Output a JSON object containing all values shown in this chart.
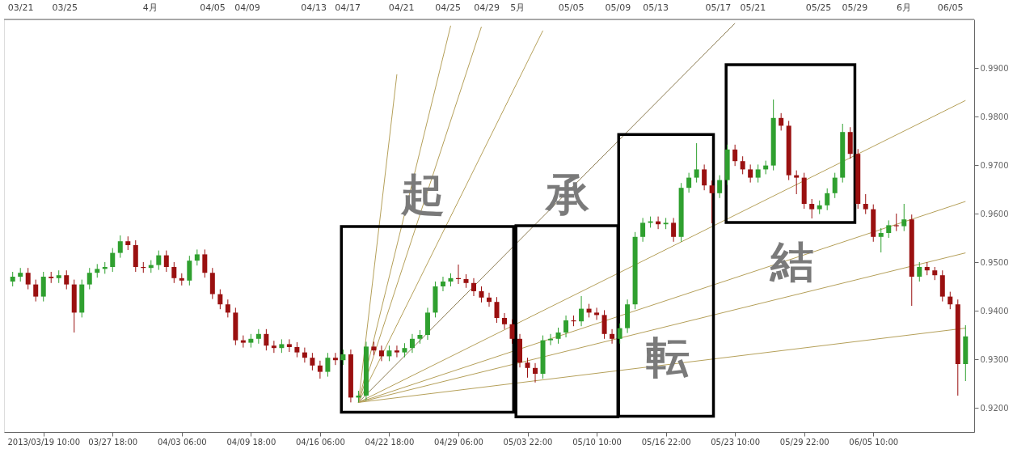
{
  "chart_data": {
    "type": "candlestick",
    "categories": [
      null,
      null,
      null,
      null,
      "2013/03/19 10:00",
      null,
      null,
      null,
      null,
      null,
      null,
      null,
      null,
      "03/27 18:00",
      null,
      null,
      null,
      null,
      null,
      null,
      null,
      null,
      "04/03 06:00",
      null,
      null,
      null,
      null,
      null,
      null,
      null,
      null,
      "04/09 18:00",
      null,
      null,
      null,
      null,
      null,
      null,
      null,
      null,
      "04/16 06:00",
      null,
      null,
      null,
      null,
      null,
      null,
      null,
      null,
      "04/22 18:00",
      null,
      null,
      null,
      null,
      null,
      null,
      null,
      null,
      "04/29 06:00",
      null,
      null,
      null,
      null,
      null,
      null,
      null,
      null,
      "05/03 22:00",
      null,
      null,
      null,
      null,
      null,
      null,
      null,
      null,
      "05/10 10:00",
      null,
      null,
      null,
      null,
      null,
      null,
      null,
      null,
      "05/16 22:00",
      null,
      null,
      null,
      null,
      null,
      null,
      null,
      null,
      "05/23 10:00",
      null,
      null,
      null,
      null,
      null,
      null,
      null,
      null,
      "05/29 22:00",
      null,
      null,
      null,
      null,
      null,
      null,
      null,
      null,
      "06/05 10:00",
      null,
      null,
      null,
      null,
      null,
      null,
      null,
      null,
      null,
      null,
      null,
      null
    ],
    "ohlc": [
      [
        0.946,
        0.948,
        0.945,
        0.947
      ],
      [
        0.947,
        0.9488,
        0.946,
        0.9478
      ],
      [
        0.9478,
        0.9488,
        0.9444,
        0.9454
      ],
      [
        0.9454,
        0.9464,
        0.9419,
        0.9429
      ],
      [
        0.9429,
        0.948,
        0.9419,
        0.947
      ],
      [
        0.947,
        0.948,
        0.9457,
        0.9467
      ],
      [
        0.9467,
        0.9483,
        0.9457,
        0.9473
      ],
      [
        0.9473,
        0.9483,
        0.9444,
        0.9454
      ],
      [
        0.9454,
        0.9464,
        0.9355,
        0.9396
      ],
      [
        0.9396,
        0.9464,
        0.9386,
        0.9454
      ],
      [
        0.9454,
        0.9488,
        0.9444,
        0.9478
      ],
      [
        0.9478,
        0.9496,
        0.9468,
        0.9486
      ],
      [
        0.9486,
        0.95,
        0.9476,
        0.949
      ],
      [
        0.949,
        0.9529,
        0.948,
        0.9519
      ],
      [
        0.9519,
        0.9555,
        0.9509,
        0.9543
      ],
      [
        0.9543,
        0.9553,
        0.9525,
        0.9535
      ],
      [
        0.9535,
        0.9545,
        0.948,
        0.949
      ],
      [
        0.949,
        0.95,
        0.9478,
        0.9488
      ],
      [
        0.9488,
        0.9504,
        0.9478,
        0.9494
      ],
      [
        0.9494,
        0.9524,
        0.9484,
        0.9514
      ],
      [
        0.9514,
        0.9524,
        0.948,
        0.949
      ],
      [
        0.949,
        0.95,
        0.9457,
        0.9467
      ],
      [
        0.9467,
        0.9477,
        0.9452,
        0.9462
      ],
      [
        0.9462,
        0.9513,
        0.9452,
        0.9503
      ],
      [
        0.9503,
        0.9526,
        0.9493,
        0.9516
      ],
      [
        0.9516,
        0.9526,
        0.9468,
        0.9478
      ],
      [
        0.9478,
        0.9488,
        0.9424,
        0.9434
      ],
      [
        0.9434,
        0.9444,
        0.9403,
        0.9413
      ],
      [
        0.9413,
        0.9423,
        0.9386,
        0.9396
      ],
      [
        0.9396,
        0.9406,
        0.9329,
        0.9339
      ],
      [
        0.9339,
        0.9349,
        0.9324,
        0.9334
      ],
      [
        0.9334,
        0.9352,
        0.9324,
        0.9342
      ],
      [
        0.9342,
        0.9362,
        0.9332,
        0.9352
      ],
      [
        0.9352,
        0.9362,
        0.9318,
        0.9328
      ],
      [
        0.9328,
        0.9338,
        0.9313,
        0.9323
      ],
      [
        0.9323,
        0.9341,
        0.9313,
        0.9331
      ],
      [
        0.9331,
        0.9341,
        0.9315,
        0.9325
      ],
      [
        0.9325,
        0.9335,
        0.9304,
        0.9314
      ],
      [
        0.9314,
        0.9324,
        0.9293,
        0.9303
      ],
      [
        0.9303,
        0.9313,
        0.9277,
        0.9287
      ],
      [
        0.9287,
        0.9297,
        0.926,
        0.9274
      ],
      [
        0.9274,
        0.9313,
        0.9264,
        0.9303
      ],
      [
        0.9303,
        0.9313,
        0.9288,
        0.9298
      ],
      [
        0.9298,
        0.932,
        0.9288,
        0.931
      ],
      [
        0.931,
        0.932,
        0.9211,
        0.9221
      ],
      [
        0.9221,
        0.9235,
        0.9211,
        0.9225
      ],
      [
        0.9225,
        0.9336,
        0.9215,
        0.9326
      ],
      [
        0.9326,
        0.9336,
        0.9308,
        0.9318
      ],
      [
        0.9318,
        0.9328,
        0.9296,
        0.9306
      ],
      [
        0.9306,
        0.9328,
        0.9296,
        0.9318
      ],
      [
        0.9318,
        0.9328,
        0.9304,
        0.9314
      ],
      [
        0.9314,
        0.9333,
        0.9304,
        0.9323
      ],
      [
        0.9323,
        0.9352,
        0.9313,
        0.9342
      ],
      [
        0.9342,
        0.936,
        0.9332,
        0.935
      ],
      [
        0.935,
        0.9406,
        0.934,
        0.9396
      ],
      [
        0.9396,
        0.946,
        0.9386,
        0.945
      ],
      [
        0.945,
        0.947,
        0.944,
        0.946
      ],
      [
        0.946,
        0.9477,
        0.945,
        0.9467
      ],
      [
        0.9467,
        0.9495,
        0.9455,
        0.9465
      ],
      [
        0.9465,
        0.9475,
        0.9447,
        0.9457
      ],
      [
        0.9457,
        0.9467,
        0.943,
        0.944
      ],
      [
        0.944,
        0.945,
        0.9417,
        0.9427
      ],
      [
        0.9427,
        0.9437,
        0.9408,
        0.9418
      ],
      [
        0.9418,
        0.9428,
        0.9375,
        0.9385
      ],
      [
        0.9385,
        0.9395,
        0.9362,
        0.9372
      ],
      [
        0.9372,
        0.9382,
        0.9332,
        0.9342
      ],
      [
        0.9342,
        0.9352,
        0.9283,
        0.9293
      ],
      [
        0.9293,
        0.9303,
        0.9262,
        0.9282
      ],
      [
        0.9282,
        0.9292,
        0.9252,
        0.927
      ],
      [
        0.927,
        0.9349,
        0.926,
        0.9339
      ],
      [
        0.9339,
        0.9352,
        0.9329,
        0.9342
      ],
      [
        0.9342,
        0.9365,
        0.9332,
        0.9355
      ],
      [
        0.9355,
        0.939,
        0.9345,
        0.938
      ],
      [
        0.938,
        0.939,
        0.9368,
        0.9378
      ],
      [
        0.9378,
        0.943,
        0.9368,
        0.9404
      ],
      [
        0.9404,
        0.9414,
        0.9386,
        0.9396
      ],
      [
        0.9396,
        0.9406,
        0.9381,
        0.9391
      ],
      [
        0.9391,
        0.9401,
        0.9342,
        0.9352
      ],
      [
        0.9352,
        0.9362,
        0.9332,
        0.9342
      ],
      [
        0.9342,
        0.9374,
        0.9332,
        0.9364
      ],
      [
        0.9364,
        0.9423,
        0.9354,
        0.9413
      ],
      [
        0.9413,
        0.9562,
        0.9403,
        0.9552
      ],
      [
        0.9552,
        0.9591,
        0.9542,
        0.9581
      ],
      [
        0.9581,
        0.9594,
        0.9571,
        0.9584
      ],
      [
        0.9584,
        0.9594,
        0.9568,
        0.9578
      ],
      [
        0.9578,
        0.9591,
        0.9568,
        0.9581
      ],
      [
        0.9581,
        0.9591,
        0.9542,
        0.9552
      ],
      [
        0.9552,
        0.9663,
        0.9542,
        0.9653
      ],
      [
        0.9653,
        0.9684,
        0.9643,
        0.9674
      ],
      [
        0.9674,
        0.9745,
        0.9664,
        0.9691
      ],
      [
        0.9691,
        0.9701,
        0.9648,
        0.9658
      ],
      [
        0.9658,
        0.9668,
        0.958,
        0.9642
      ],
      [
        0.9642,
        0.9679,
        0.9632,
        0.9669
      ],
      [
        0.9669,
        0.9742,
        0.9659,
        0.9732
      ],
      [
        0.9732,
        0.9742,
        0.9698,
        0.9708
      ],
      [
        0.9708,
        0.9718,
        0.9681,
        0.9691
      ],
      [
        0.9691,
        0.9701,
        0.9664,
        0.9674
      ],
      [
        0.9674,
        0.9701,
        0.9664,
        0.9691
      ],
      [
        0.9691,
        0.9709,
        0.9681,
        0.9699
      ],
      [
        0.9699,
        0.9835,
        0.9689,
        0.9797
      ],
      [
        0.9797,
        0.9807,
        0.9771,
        0.9781
      ],
      [
        0.9781,
        0.9791,
        0.9669,
        0.9679
      ],
      [
        0.9679,
        0.9689,
        0.964,
        0.9674
      ],
      [
        0.9674,
        0.9684,
        0.961,
        0.962
      ],
      [
        0.962,
        0.963,
        0.959,
        0.9609
      ],
      [
        0.9609,
        0.9627,
        0.9599,
        0.9617
      ],
      [
        0.9617,
        0.9652,
        0.9607,
        0.9642
      ],
      [
        0.9642,
        0.9684,
        0.9632,
        0.9674
      ],
      [
        0.9674,
        0.9785,
        0.9664,
        0.9768
      ],
      [
        0.9768,
        0.9778,
        0.9713,
        0.9723
      ],
      [
        0.9723,
        0.9733,
        0.961,
        0.962
      ],
      [
        0.962,
        0.964,
        0.9599,
        0.9609
      ],
      [
        0.9609,
        0.9619,
        0.9542,
        0.9552
      ],
      [
        0.9552,
        0.957,
        0.952,
        0.956
      ],
      [
        0.956,
        0.9586,
        0.955,
        0.9576
      ],
      [
        0.9576,
        0.96,
        0.9564,
        0.9574
      ],
      [
        0.9574,
        0.962,
        0.9564,
        0.9588
      ],
      [
        0.9588,
        0.9598,
        0.941,
        0.947
      ],
      [
        0.947,
        0.95,
        0.946,
        0.949
      ],
      [
        0.949,
        0.95,
        0.9473,
        0.9483
      ],
      [
        0.9483,
        0.949,
        0.9463,
        0.9473
      ],
      [
        0.9473,
        0.9483,
        0.9419,
        0.9429
      ],
      [
        0.9429,
        0.9439,
        0.9403,
        0.9413
      ],
      [
        0.9413,
        0.9423,
        0.9225,
        0.929
      ],
      [
        0.929,
        0.937,
        0.9255,
        0.9347
      ]
    ],
    "series": [
      {
        "type": "line",
        "color": "#b5a05a",
        "values": [
          null,
          null,
          null,
          null,
          null,
          null,
          null,
          null,
          null,
          null,
          null,
          null,
          null,
          null,
          null,
          null,
          null,
          null,
          null,
          null,
          null,
          null,
          null,
          null,
          null,
          null,
          null,
          null,
          null,
          null,
          null,
          null,
          null,
          null,
          null,
          null,
          null,
          null,
          null,
          null,
          null,
          null,
          null,
          null,
          null,
          0.9211,
          null,
          null,
          null,
          null,
          0.9887,
          null,
          null,
          null,
          null,
          null,
          null,
          null,
          null,
          null,
          null,
          null,
          null,
          null,
          null,
          null,
          null,
          null,
          null,
          null,
          null,
          null,
          null,
          null,
          null,
          null,
          null,
          null,
          null,
          null,
          null,
          null,
          null,
          null,
          null,
          null,
          null,
          null,
          null,
          null,
          null,
          null,
          null,
          null,
          null,
          null,
          null,
          null,
          null,
          null,
          null,
          null,
          null,
          null,
          null,
          null,
          null,
          null,
          null,
          null,
          null,
          null,
          null,
          null,
          null,
          null,
          null,
          null,
          null,
          null,
          null,
          null,
          null,
          null,
          null
        ]
      },
      {
        "type": "line",
        "color": "#b5a05a",
        "values": [
          null,
          null,
          null,
          null,
          null,
          null,
          null,
          null,
          null,
          null,
          null,
          null,
          null,
          null,
          null,
          null,
          null,
          null,
          null,
          null,
          null,
          null,
          null,
          null,
          null,
          null,
          null,
          null,
          null,
          null,
          null,
          null,
          null,
          null,
          null,
          null,
          null,
          null,
          null,
          null,
          null,
          null,
          null,
          null,
          null,
          0.9211,
          null,
          null,
          null,
          null,
          null,
          null,
          null,
          null,
          null,
          null,
          null,
          0.9987,
          null,
          null,
          null,
          null,
          null,
          null,
          null,
          null,
          null,
          null,
          null,
          null,
          null,
          null,
          null,
          null,
          null,
          null,
          null,
          null,
          null,
          null,
          null,
          null,
          null,
          null,
          null,
          null,
          null,
          null,
          null,
          null,
          null,
          null,
          null,
          null,
          null,
          null,
          null,
          null,
          null,
          null,
          null,
          null,
          null,
          null,
          null,
          null,
          null,
          null,
          null,
          null,
          null,
          null,
          null,
          null,
          null,
          null,
          null,
          null,
          null,
          null,
          null,
          null,
          null,
          null,
          null
        ]
      },
      {
        "type": "line",
        "color": "#b5a05a",
        "values": [
          null,
          null,
          null,
          null,
          null,
          null,
          null,
          null,
          null,
          null,
          null,
          null,
          null,
          null,
          null,
          null,
          null,
          null,
          null,
          null,
          null,
          null,
          null,
          null,
          null,
          null,
          null,
          null,
          null,
          null,
          null,
          null,
          null,
          null,
          null,
          null,
          null,
          null,
          null,
          null,
          null,
          null,
          null,
          null,
          null,
          0.9211,
          null,
          null,
          null,
          null,
          null,
          null,
          null,
          null,
          null,
          null,
          null,
          null,
          null,
          null,
          null,
          0.9985,
          null,
          null,
          null,
          null,
          null,
          null,
          null,
          null,
          null,
          null,
          null,
          null,
          null,
          null,
          null,
          null,
          null,
          null,
          null,
          null,
          null,
          null,
          null,
          null,
          null,
          null,
          null,
          null,
          null,
          null,
          null,
          null,
          null,
          null,
          null,
          null,
          null,
          null,
          null,
          null,
          null,
          null,
          null,
          null,
          null,
          null,
          null,
          null,
          null,
          null,
          null,
          null,
          null,
          null,
          null,
          null,
          null,
          null,
          null,
          null,
          null,
          null,
          null
        ]
      },
      {
        "type": "line",
        "color": "#b5a05a",
        "values": [
          null,
          null,
          null,
          null,
          null,
          null,
          null,
          null,
          null,
          null,
          null,
          null,
          null,
          null,
          null,
          null,
          null,
          null,
          null,
          null,
          null,
          null,
          null,
          null,
          null,
          null,
          null,
          null,
          null,
          null,
          null,
          null,
          null,
          null,
          null,
          null,
          null,
          null,
          null,
          null,
          null,
          null,
          null,
          null,
          null,
          0.9211,
          null,
          null,
          null,
          null,
          null,
          null,
          null,
          null,
          null,
          null,
          null,
          null,
          null,
          null,
          null,
          null,
          null,
          null,
          null,
          null,
          null,
          null,
          null,
          0.9977,
          null,
          null,
          null,
          null,
          null,
          null,
          null,
          null,
          null,
          null,
          null,
          null,
          null,
          null,
          null,
          null,
          null,
          null,
          null,
          null,
          null,
          null,
          null,
          null,
          null,
          null,
          null,
          null,
          null,
          null,
          null,
          null,
          null,
          null,
          null,
          null,
          null,
          null,
          null,
          null,
          null,
          null,
          null,
          null,
          null,
          null,
          null,
          null,
          null,
          null,
          null,
          null,
          null,
          null,
          null
        ]
      },
      {
        "type": "line",
        "color": "#8a7a50",
        "values": [
          null,
          null,
          null,
          null,
          null,
          null,
          null,
          null,
          null,
          null,
          null,
          null,
          null,
          null,
          null,
          null,
          null,
          null,
          null,
          null,
          null,
          null,
          null,
          null,
          null,
          null,
          null,
          null,
          null,
          null,
          null,
          null,
          null,
          null,
          null,
          null,
          null,
          null,
          null,
          null,
          null,
          null,
          null,
          null,
          null,
          0.9211,
          null,
          null,
          null,
          null,
          null,
          null,
          null,
          null,
          null,
          null,
          null,
          null,
          null,
          null,
          null,
          null,
          null,
          null,
          null,
          null,
          null,
          null,
          null,
          null,
          null,
          null,
          null,
          null,
          null,
          null,
          null,
          null,
          null,
          null,
          null,
          null,
          null,
          null,
          null,
          null,
          null,
          null,
          null,
          null,
          null,
          null,
          null,
          null,
          0.9992,
          null,
          null,
          null,
          null,
          null,
          null,
          null,
          null,
          null,
          null,
          null,
          null,
          null,
          null,
          null,
          null,
          null,
          null,
          null,
          null,
          null,
          null,
          null,
          null,
          null,
          null,
          null,
          null,
          null,
          null
        ]
      },
      {
        "type": "line",
        "color": "#b5a05a",
        "values": [
          null,
          null,
          null,
          null,
          null,
          null,
          null,
          null,
          null,
          null,
          null,
          null,
          null,
          null,
          null,
          null,
          null,
          null,
          null,
          null,
          null,
          null,
          null,
          null,
          null,
          null,
          null,
          null,
          null,
          null,
          null,
          null,
          null,
          null,
          null,
          null,
          null,
          null,
          null,
          null,
          null,
          null,
          null,
          null,
          null,
          0.9211,
          null,
          null,
          null,
          null,
          null,
          null,
          null,
          null,
          null,
          null,
          null,
          null,
          null,
          null,
          null,
          null,
          null,
          null,
          null,
          null,
          null,
          null,
          null,
          null,
          null,
          null,
          null,
          null,
          null,
          null,
          null,
          null,
          null,
          null,
          null,
          null,
          null,
          null,
          null,
          null,
          null,
          null,
          null,
          null,
          null,
          null,
          null,
          null,
          null,
          null,
          null,
          null,
          null,
          null,
          null,
          null,
          null,
          null,
          null,
          null,
          null,
          null,
          null,
          null,
          null,
          null,
          null,
          null,
          null,
          null,
          null,
          null,
          null,
          null,
          null,
          null,
          null,
          null,
          0.9833
        ]
      },
      {
        "type": "line",
        "color": "#b5a05a",
        "values": [
          null,
          null,
          null,
          null,
          null,
          null,
          null,
          null,
          null,
          null,
          null,
          null,
          null,
          null,
          null,
          null,
          null,
          null,
          null,
          null,
          null,
          null,
          null,
          null,
          null,
          null,
          null,
          null,
          null,
          null,
          null,
          null,
          null,
          null,
          null,
          null,
          null,
          null,
          null,
          null,
          null,
          null,
          null,
          null,
          null,
          0.9211,
          null,
          null,
          null,
          null,
          null,
          null,
          null,
          null,
          null,
          null,
          null,
          null,
          null,
          null,
          null,
          null,
          null,
          null,
          null,
          null,
          null,
          null,
          null,
          null,
          null,
          null,
          null,
          null,
          null,
          null,
          null,
          null,
          null,
          null,
          null,
          null,
          null,
          null,
          null,
          null,
          null,
          null,
          null,
          null,
          null,
          null,
          null,
          null,
          null,
          null,
          null,
          null,
          null,
          null,
          null,
          null,
          null,
          null,
          null,
          null,
          null,
          null,
          null,
          null,
          null,
          null,
          null,
          null,
          null,
          null,
          null,
          null,
          null,
          null,
          null,
          null,
          null,
          null,
          0.9625
        ]
      },
      {
        "type": "line",
        "color": "#b5a05a",
        "values": [
          null,
          null,
          null,
          null,
          null,
          null,
          null,
          null,
          null,
          null,
          null,
          null,
          null,
          null,
          null,
          null,
          null,
          null,
          null,
          null,
          null,
          null,
          null,
          null,
          null,
          null,
          null,
          null,
          null,
          null,
          null,
          null,
          null,
          null,
          null,
          null,
          null,
          null,
          null,
          null,
          null,
          null,
          null,
          null,
          null,
          0.9211,
          null,
          null,
          null,
          null,
          null,
          null,
          null,
          null,
          null,
          null,
          null,
          null,
          null,
          null,
          null,
          null,
          null,
          null,
          null,
          null,
          null,
          null,
          null,
          null,
          null,
          null,
          null,
          null,
          null,
          null,
          null,
          null,
          null,
          null,
          null,
          null,
          null,
          null,
          null,
          null,
          null,
          null,
          null,
          null,
          null,
          null,
          null,
          null,
          null,
          null,
          null,
          null,
          null,
          null,
          null,
          null,
          null,
          null,
          null,
          null,
          null,
          null,
          null,
          null,
          null,
          null,
          null,
          null,
          null,
          null,
          null,
          null,
          null,
          null,
          null,
          null,
          null,
          null,
          0.9519
        ]
      },
      {
        "type": "line",
        "color": "#b5a05a",
        "values": [
          null,
          null,
          null,
          null,
          null,
          null,
          null,
          null,
          null,
          null,
          null,
          null,
          null,
          null,
          null,
          null,
          null,
          null,
          null,
          null,
          null,
          null,
          null,
          null,
          null,
          null,
          null,
          null,
          null,
          null,
          null,
          null,
          null,
          null,
          null,
          null,
          null,
          null,
          null,
          null,
          null,
          null,
          null,
          null,
          null,
          0.9211,
          null,
          null,
          null,
          null,
          null,
          null,
          null,
          null,
          null,
          null,
          null,
          null,
          null,
          null,
          null,
          null,
          null,
          null,
          null,
          null,
          null,
          null,
          null,
          null,
          null,
          null,
          null,
          null,
          null,
          null,
          null,
          null,
          null,
          null,
          null,
          null,
          null,
          null,
          null,
          null,
          null,
          null,
          null,
          null,
          null,
          null,
          null,
          null,
          null,
          null,
          null,
          null,
          null,
          null,
          null,
          null,
          null,
          null,
          null,
          null,
          null,
          null,
          null,
          null,
          null,
          null,
          null,
          null,
          null,
          null,
          null,
          null,
          null,
          null,
          null,
          null,
          null,
          null,
          0.9364
        ]
      }
    ],
    "ylim": [
      0.915,
      1.0
    ],
    "yticks": [
      {
        "value": 0.92,
        "label": "0.9200"
      },
      {
        "value": 0.93,
        "label": "0.9300"
      },
      {
        "value": 0.94,
        "label": "0.9400"
      },
      {
        "value": 0.95,
        "label": "0.9500"
      },
      {
        "value": 0.96,
        "label": "0.9600"
      },
      {
        "value": 0.97,
        "label": "0.9700"
      },
      {
        "value": 0.98,
        "label": "0.9800"
      },
      {
        "value": 0.99,
        "label": "0.9900"
      }
    ],
    "annotations": [
      "03/21",
      "03/25",
      "4月",
      "04/05",
      "04/09",
      "04/13",
      "04/17",
      "04/21",
      "04/25",
      "04/29",
      "5月",
      "05/05",
      "05/09",
      "05/13",
      "05/17",
      "05/21",
      "05/25",
      "05/29",
      "6月",
      "06/05",
      "起",
      "承",
      "転",
      "結"
    ],
    "grid": false,
    "legend": false
  }
}
